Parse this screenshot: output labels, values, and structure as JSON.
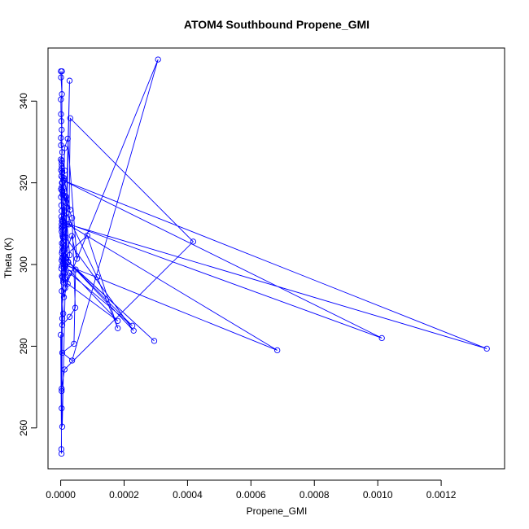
{
  "chart_data": {
    "type": "line",
    "title": "ATOM4 Southbound Propene_GMI",
    "xlabel": "Propene_GMI",
    "ylabel": "Theta (K)",
    "xlim": [
      -4e-05,
      0.0014
    ],
    "ylim": [
      250,
      353
    ],
    "x_ticks": [
      0,
      0.0002,
      0.0004,
      0.0006,
      0.0008,
      0.001,
      0.0012
    ],
    "x_tick_labels": [
      "0.0000",
      "0.0002",
      "0.0004",
      "0.0006",
      "0.0008",
      "0.0010",
      "0.0012"
    ],
    "y_ticks": [
      260,
      280,
      300,
      320,
      340
    ],
    "y_tick_labels": [
      "260",
      "280",
      "300",
      "320",
      "340"
    ],
    "grid": false,
    "marker": "open-circle",
    "color": "#0000ff",
    "series": [
      {
        "x": [
          6e-07,
          1e-06,
          4e-06,
          5e-07,
          1e-06,
          2e-06,
          3e-06,
          8e-07,
          1e-06,
          5e-06,
          6e-07,
          3e-06,
          1e-06,
          2e-06,
          4e-06,
          1e-06,
          1e-06,
          2e-06,
          3e-06,
          2e-06,
          4e-06,
          5e-06,
          3e-06,
          6e-06,
          8e-06,
          6e-06,
          4e-06,
          5e-06,
          7e-06,
          1e-05,
          9e-06,
          6e-06,
          8e-06,
          4e-06,
          2e-06,
          3e-06,
          5e-06,
          4e-06,
          6e-06,
          8e-06,
          1e-05,
          1.2e-05,
          1.5e-05,
          6e-06,
          3e-06,
          8e-06,
          5e-06,
          3.5e-06,
          4e-06,
          1.3e-05,
          6e-06,
          1.2e-05,
          1e-05,
          5e-06,
          3e-06,
          8e-06,
          1e-05,
          6e-06,
          4e-06,
          1.6e-05,
          1e-05,
          7e-06,
          3e-06,
          1.2e-05,
          1.7e-05,
          8e-06,
          6e-06,
          4e-06,
          6e-06,
          7e-06,
          9e-06,
          6e-06,
          1e-05,
          2.2e-05,
          0.00018,
          1.5e-05,
          2e-05,
          2.8e-05,
          1.4e-05,
          9.5e-06,
          8e-06,
          6e-06,
          1.2e-05,
          2.4e-05,
          3.5e-06,
          8e-06,
          5e-06,
          2.8e-05,
          4.6e-05,
          3.6e-05,
          5e-06,
          3e-05,
          1e-05,
          1.2e-05,
          2.2e-05,
          5.1e-05,
          3.5e-05,
          1.3e-05,
          8.4e-05,
          0.00018,
          0.000115,
          1.8e-05,
          1.4e-05,
          0.00023,
          1.7e-05,
          0.000295,
          2.3e-05,
          0.000226,
          2.85e-05,
          1.4e-05,
          0.000307,
          3.6e-05,
          5e-06,
          4.2e-05,
          4.7e-05,
          1.25e-05,
          0.000683,
          1.2e-05,
          0.001013,
          1e-05,
          0.001344,
          2.6e-05,
          3e-05,
          0.000418,
          1.2e-05,
          3e-06,
          3e-06,
          3e-06,
          5e-06,
          8e-06,
          1.2e-05,
          2.8e-05,
          5e-06,
          0.0,
          2.5e-06,
          2e-06,
          4e-06
        ],
        "y": [
          347.3,
          345.8,
          341.7,
          340.4,
          336.8,
          335.1,
          333.0,
          331.0,
          329.2,
          327.5,
          325.7,
          324.8,
          323.1,
          321.6,
          320.0,
          318.4,
          316.5,
          314.5,
          313.1,
          311.7,
          310.6,
          309.3,
          308.1,
          307.0,
          305.6,
          304.2,
          302.8,
          301.5,
          300.3,
          299.2,
          298.1,
          296.9,
          295.6,
          297.2,
          299.0,
          301.0,
          303.3,
          305.2,
          307.4,
          309.5,
          311.3,
          313.0,
          315.4,
          317.1,
          318.9,
          320.7,
          322.5,
          324.1,
          325.4,
          323.0,
          320.0,
          316.8,
          314.0,
          311.0,
          309.0,
          306.5,
          304.0,
          301.8,
          299.7,
          298.1,
          302.2,
          306.7,
          309.8,
          313.3,
          316.6,
          318.9,
          321.3,
          323.5,
          318.0,
          310.5,
          303.5,
          297.0,
          292.0,
          295.3,
          286.2,
          299.6,
          309.9,
          302.3,
          296.8,
          301.0,
          305.0,
          308.5,
          313.3,
          300.5,
          293.5,
          288.0,
          285.2,
          287.2,
          289.4,
          311.4,
          318.0,
          313.4,
          321.2,
          328.5,
          330.8,
          301.4,
          307.0,
          302.0,
          307.1,
          284.4,
          296.9,
          312.6,
          306.8,
          283.8,
          301.2,
          281.3,
          300.7,
          285.0,
          297.9,
          294.2,
          350.2,
          276.5,
          278.4,
          280.6,
          298.8,
          300.0,
          279.0,
          310.3,
          282.0,
          320.5,
          279.4,
          309.8,
          335.8,
          305.6,
          274.3,
          269.6,
          269.0,
          264.8,
          286.8,
          296.2,
          296.5,
          345.0,
          260.3,
          282.8,
          253.7,
          254.8,
          347.3
        ]
      }
    ]
  }
}
